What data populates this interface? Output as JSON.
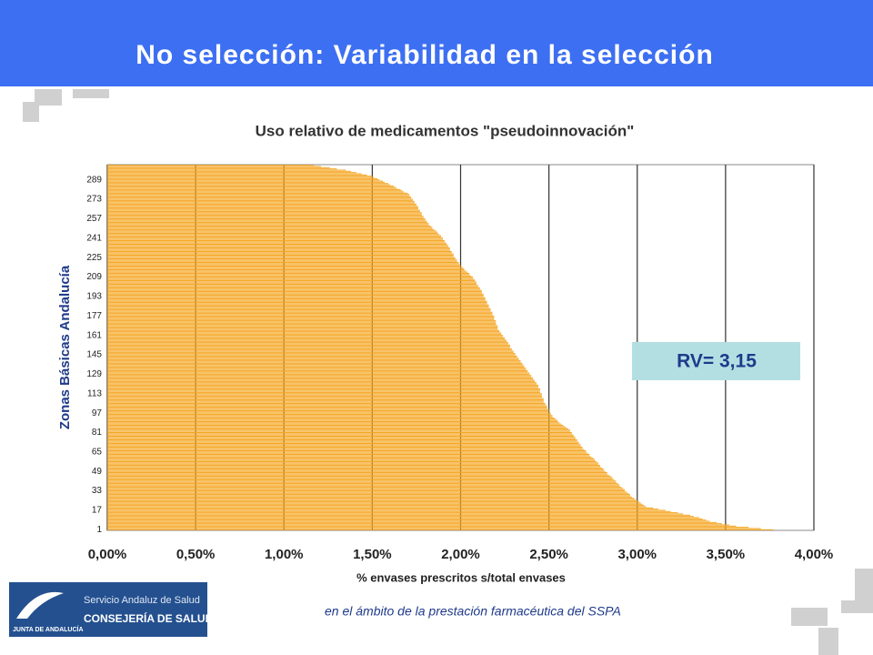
{
  "header": {
    "title": "No selección: Variabilidad en la selección"
  },
  "chart_data": {
    "type": "bar",
    "orientation": "horizontal",
    "title": "Uso relativo de medicamentos \"pseudoinnovación\"",
    "x_label": "% envases prescritos s/total envases",
    "y_label": "Zonas Básicas Andalucía",
    "annotation": "RV= 3,15",
    "color": "#f5a623",
    "grid": true,
    "xlim": [
      0,
      4
    ],
    "xticks": [
      {
        "value": 0,
        "label": "0,00%"
      },
      {
        "value": 0.5,
        "label": "0,50%"
      },
      {
        "value": 1,
        "label": "1,00%"
      },
      {
        "value": 1.5,
        "label": "1,50%"
      },
      {
        "value": 2,
        "label": "2,00%"
      },
      {
        "value": 2.5,
        "label": "2,50%"
      },
      {
        "value": 3,
        "label": "3,00%"
      },
      {
        "value": 3.5,
        "label": "3,50%"
      },
      {
        "value": 4,
        "label": "4,00%"
      }
    ],
    "categories": [
      "1",
      null,
      null,
      null,
      null,
      null,
      null,
      null,
      null,
      null,
      null,
      null,
      null,
      null,
      null,
      null,
      "17",
      null,
      null,
      null,
      null,
      null,
      null,
      null,
      null,
      null,
      null,
      null,
      null,
      null,
      null,
      null,
      "33",
      null,
      null,
      null,
      null,
      null,
      null,
      null,
      null,
      null,
      null,
      null,
      null,
      null,
      null,
      null,
      "49",
      null,
      null,
      null,
      null,
      null,
      null,
      null,
      null,
      null,
      null,
      null,
      null,
      null,
      null,
      null,
      "65",
      null,
      null,
      null,
      null,
      null,
      null,
      null,
      null,
      null,
      null,
      null,
      null,
      null,
      null,
      null,
      "81",
      null,
      null,
      null,
      null,
      null,
      null,
      null,
      null,
      null,
      null,
      null,
      null,
      null,
      null,
      null,
      "97",
      null,
      null,
      null,
      null,
      null,
      null,
      null,
      null,
      null,
      null,
      null,
      null,
      null,
      null,
      null,
      "113",
      null,
      null,
      null,
      null,
      null,
      null,
      null,
      null,
      null,
      null,
      null,
      null,
      null,
      null,
      null,
      "129",
      null,
      null,
      null,
      null,
      null,
      null,
      null,
      null,
      null,
      null,
      null,
      null,
      null,
      null,
      null,
      "145",
      null,
      null,
      null,
      null,
      null,
      null,
      null,
      null,
      null,
      null,
      null,
      null,
      null,
      null,
      null,
      "161",
      null,
      null,
      null,
      null,
      null,
      null,
      null,
      null,
      null,
      null,
      null,
      null,
      null,
      null,
      null,
      "177",
      null,
      null,
      null,
      null,
      null,
      null,
      null,
      null,
      null,
      null,
      null,
      null,
      null,
      null,
      null,
      "193",
      null,
      null,
      null,
      null,
      null,
      null,
      null,
      null,
      null,
      null,
      null,
      null,
      null,
      null,
      null,
      "209",
      null,
      null,
      null,
      null,
      null,
      null,
      null,
      null,
      null,
      null,
      null,
      null,
      null,
      null,
      null,
      "225",
      null,
      null,
      null,
      null,
      null,
      null,
      null,
      null,
      null,
      null,
      null,
      null,
      null,
      null,
      null,
      "241",
      null,
      null,
      null,
      null,
      null,
      null,
      null,
      null,
      null,
      null,
      null,
      null,
      null,
      null,
      null,
      "257",
      null,
      null,
      null,
      null,
      null,
      null,
      null,
      null,
      null,
      null,
      null,
      null,
      null,
      null,
      null,
      "273",
      null,
      null,
      null,
      null,
      null,
      null,
      null,
      null,
      null,
      null,
      null,
      null,
      null,
      null,
      null,
      "289",
      null,
      null,
      null,
      null,
      null,
      null,
      null,
      null,
      null,
      null,
      null,
      null
    ],
    "values": [
      3.77,
      3.7,
      3.63,
      3.56,
      3.52,
      3.48,
      3.45,
      3.41,
      3.39,
      3.37,
      3.35,
      3.32,
      3.3,
      3.26,
      3.23,
      3.19,
      3.16,
      3.12,
      3.09,
      3.05,
      3.04,
      3.03,
      3.02,
      3.01,
      3.0,
      2.99,
      2.98,
      2.97,
      2.96,
      2.96,
      2.95,
      2.94,
      2.93,
      2.93,
      2.92,
      2.91,
      2.9,
      2.9,
      2.89,
      2.88,
      2.88,
      2.87,
      2.86,
      2.86,
      2.85,
      2.84,
      2.83,
      2.83,
      2.82,
      2.81,
      2.81,
      2.8,
      2.79,
      2.79,
      2.78,
      2.78,
      2.77,
      2.76,
      2.76,
      2.75,
      2.74,
      2.73,
      2.73,
      2.72,
      2.71,
      2.71,
      2.7,
      2.69,
      2.69,
      2.68,
      2.68,
      2.67,
      2.67,
      2.66,
      2.66,
      2.65,
      2.65,
      2.64,
      2.64,
      2.63,
      2.63,
      2.62,
      2.62,
      2.61,
      2.6,
      2.59,
      2.58,
      2.57,
      2.56,
      2.55,
      2.55,
      2.54,
      2.53,
      2.52,
      2.52,
      2.51,
      2.51,
      2.5,
      2.5,
      2.5,
      2.49,
      2.49,
      2.49,
      2.48,
      2.48,
      2.47,
      2.47,
      2.47,
      2.47,
      2.46,
      2.46,
      2.46,
      2.46,
      2.45,
      2.45,
      2.45,
      2.45,
      2.44,
      2.44,
      2.44,
      2.43,
      2.43,
      2.42,
      2.42,
      2.41,
      2.41,
      2.4,
      2.4,
      2.39,
      2.39,
      2.38,
      2.38,
      2.37,
      2.37,
      2.36,
      2.36,
      2.35,
      2.35,
      2.34,
      2.34,
      2.33,
      2.33,
      2.32,
      2.32,
      2.31,
      2.31,
      2.3,
      2.3,
      2.29,
      2.29,
      2.28,
      2.28,
      2.28,
      2.27,
      2.27,
      2.26,
      2.26,
      2.25,
      2.25,
      2.24,
      2.24,
      2.23,
      2.23,
      2.22,
      2.22,
      2.21,
      2.21,
      2.21,
      2.21,
      2.2,
      2.2,
      2.2,
      2.2,
      2.19,
      2.19,
      2.19,
      2.19,
      2.18,
      2.18,
      2.18,
      2.17,
      2.17,
      2.17,
      2.16,
      2.16,
      2.16,
      2.15,
      2.15,
      2.15,
      2.14,
      2.14,
      2.14,
      2.13,
      2.13,
      2.13,
      2.12,
      2.12,
      2.12,
      2.11,
      2.11,
      2.1,
      2.1,
      2.09,
      2.09,
      2.09,
      2.08,
      2.08,
      2.07,
      2.07,
      2.06,
      2.05,
      2.05,
      2.04,
      2.03,
      2.02,
      2.02,
      2.01,
      2.0,
      2.0,
      1.99,
      1.99,
      1.98,
      1.98,
      1.97,
      1.97,
      1.96,
      1.96,
      1.96,
      1.95,
      1.95,
      1.94,
      1.94,
      1.94,
      1.93,
      1.93,
      1.92,
      1.92,
      1.91,
      1.91,
      1.9,
      1.9,
      1.89,
      1.89,
      1.88,
      1.87,
      1.87,
      1.86,
      1.85,
      1.84,
      1.84,
      1.83,
      1.82,
      1.82,
      1.81,
      1.81,
      1.8,
      1.8,
      1.79,
      1.79,
      1.78,
      1.78,
      1.78,
      1.77,
      1.77,
      1.76,
      1.76,
      1.76,
      1.75,
      1.75,
      1.74,
      1.74,
      1.73,
      1.73,
      1.72,
      1.72,
      1.71,
      1.71,
      1.7,
      1.68,
      1.67,
      1.66,
      1.64,
      1.63,
      1.62,
      1.6,
      1.59,
      1.57,
      1.56,
      1.54,
      1.53,
      1.51,
      1.5,
      1.47,
      1.44,
      1.41,
      1.38,
      1.35,
      1.3,
      1.26,
      1.21,
      1.17
    ]
  },
  "footer": {
    "text": "en el ámbito de la prestación farmacéutica del SSPA",
    "logo": {
      "line1": "Servicio Andaluz de Salud",
      "line2": "CONSEJERÍA DE SALUD",
      "line3": "JUNTA DE ANDALUCÍA"
    }
  }
}
